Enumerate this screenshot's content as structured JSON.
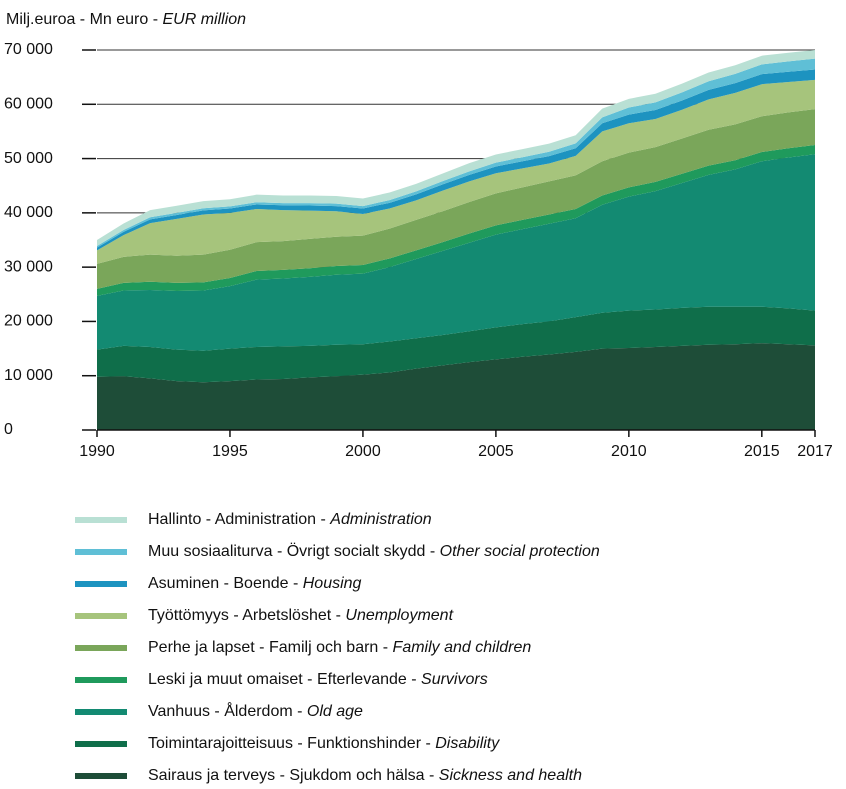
{
  "chart_data": {
    "type": "stacked_area",
    "y_label": "Milj.euroa - Mn euro - EUR million",
    "x": [
      1990,
      1991,
      1992,
      1993,
      1994,
      1995,
      1996,
      1997,
      1998,
      1999,
      2000,
      2001,
      2002,
      2003,
      2004,
      2005,
      2006,
      2007,
      2008,
      2009,
      2010,
      2011,
      2012,
      2013,
      2014,
      2015,
      2016,
      2017
    ],
    "xlim": [
      1990,
      2017
    ],
    "xticks": [
      1990,
      1995,
      2000,
      2005,
      2010,
      2015,
      2017
    ],
    "ylim": [
      0,
      70000
    ],
    "yticks": [
      {
        "value": 0,
        "label": "0"
      },
      {
        "value": 10000,
        "label": "10 000"
      },
      {
        "value": 20000,
        "label": "20 000"
      },
      {
        "value": 30000,
        "label": "30 000"
      },
      {
        "value": 40000,
        "label": "40 000"
      },
      {
        "value": 50000,
        "label": "50 000"
      },
      {
        "value": 60000,
        "label": "60 000"
      },
      {
        "value": 70000,
        "label": "70 000"
      }
    ],
    "grid": true,
    "series": [
      {
        "name": "Sairaus ja terveys - Sjukdom och hälsa - Sickness and health",
        "color": "#1e4d38",
        "values": [
          9800,
          9900,
          9500,
          9000,
          8800,
          9000,
          9300,
          9400,
          9700,
          9900,
          10200,
          10600,
          11300,
          11900,
          12500,
          13000,
          13500,
          13900,
          14400,
          15000,
          15100,
          15300,
          15500,
          15700,
          15800,
          16000,
          15800,
          15600
        ]
      },
      {
        "name": "Toimintarajoitteisuus - Funktionshinder - Disability",
        "color": "#0f6e4a",
        "values": [
          5000,
          5600,
          5800,
          5800,
          5800,
          6000,
          6000,
          6000,
          5800,
          5800,
          5600,
          5700,
          5600,
          5600,
          5700,
          5900,
          6000,
          6100,
          6400,
          6600,
          6900,
          6900,
          7000,
          7000,
          6900,
          6700,
          6600,
          6400
        ]
      },
      {
        "name": "Vanhuus - Ålderdom - Old age",
        "color": "#138a72",
        "values": [
          9900,
          10200,
          10500,
          10800,
          11100,
          11500,
          12400,
          12500,
          12700,
          12900,
          13000,
          13700,
          14600,
          15500,
          16300,
          17100,
          17500,
          18000,
          18200,
          19900,
          21000,
          21800,
          23000,
          24300,
          25300,
          26800,
          27800,
          28800
        ]
      },
      {
        "name": "Leski ja muut omaiset - Efterlevande - Survivors",
        "color": "#1f9a5c",
        "values": [
          1300,
          1400,
          1500,
          1500,
          1500,
          1500,
          1600,
          1600,
          1600,
          1600,
          1600,
          1600,
          1600,
          1600,
          1700,
          1700,
          1700,
          1700,
          1700,
          1700,
          1700,
          1700,
          1700,
          1700,
          1700,
          1700,
          1700,
          1700
        ]
      },
      {
        "name": "Perhe ja lapset - Familj och barn - Family and children",
        "color": "#7aa65a",
        "values": [
          4600,
          4800,
          5000,
          5000,
          5100,
          5200,
          5300,
          5300,
          5400,
          5400,
          5400,
          5500,
          5600,
          5700,
          5800,
          5900,
          6000,
          6100,
          6200,
          6300,
          6400,
          6400,
          6500,
          6600,
          6600,
          6600,
          6600,
          6600
        ]
      },
      {
        "name": "Työttömyys - Arbetslöshet - Unemployment",
        "color": "#a6c47c",
        "values": [
          2500,
          4000,
          5800,
          6800,
          7400,
          6800,
          6100,
          5700,
          5200,
          4700,
          4000,
          3700,
          3600,
          3800,
          3800,
          3700,
          3500,
          3300,
          3600,
          5500,
          5400,
          5200,
          5300,
          5600,
          5800,
          5900,
          5600,
          5400
        ]
      },
      {
        "name": "Asuminen - Boende - Housing",
        "color": "#1d93c0",
        "values": [
          500,
          600,
          700,
          700,
          750,
          800,
          850,
          900,
          950,
          950,
          1000,
          1050,
          1100,
          1150,
          1200,
          1250,
          1300,
          1350,
          1400,
          1500,
          1600,
          1650,
          1700,
          1750,
          1800,
          1850,
          1900,
          1900
        ]
      },
      {
        "name": "Muu sosiaaliturva - Övrigt socialt skydd - Other social protection",
        "color": "#5fbfd6",
        "values": [
          300,
          350,
          400,
          400,
          400,
          400,
          400,
          400,
          450,
          450,
          450,
          500,
          550,
          600,
          650,
          700,
          750,
          800,
          900,
          1100,
          1300,
          1400,
          1500,
          1600,
          1700,
          1800,
          1900,
          2000
        ]
      },
      {
        "name": "Hallinto - Administration - Administration",
        "color": "#b9e0d4",
        "values": [
          1100,
          1200,
          1300,
          1300,
          1300,
          1300,
          1400,
          1400,
          1400,
          1400,
          1400,
          1400,
          1400,
          1400,
          1500,
          1500,
          1500,
          1500,
          1500,
          1600,
          1600,
          1600,
          1600,
          1600,
          1600,
          1600,
          1600,
          1600
        ]
      }
    ]
  }
}
